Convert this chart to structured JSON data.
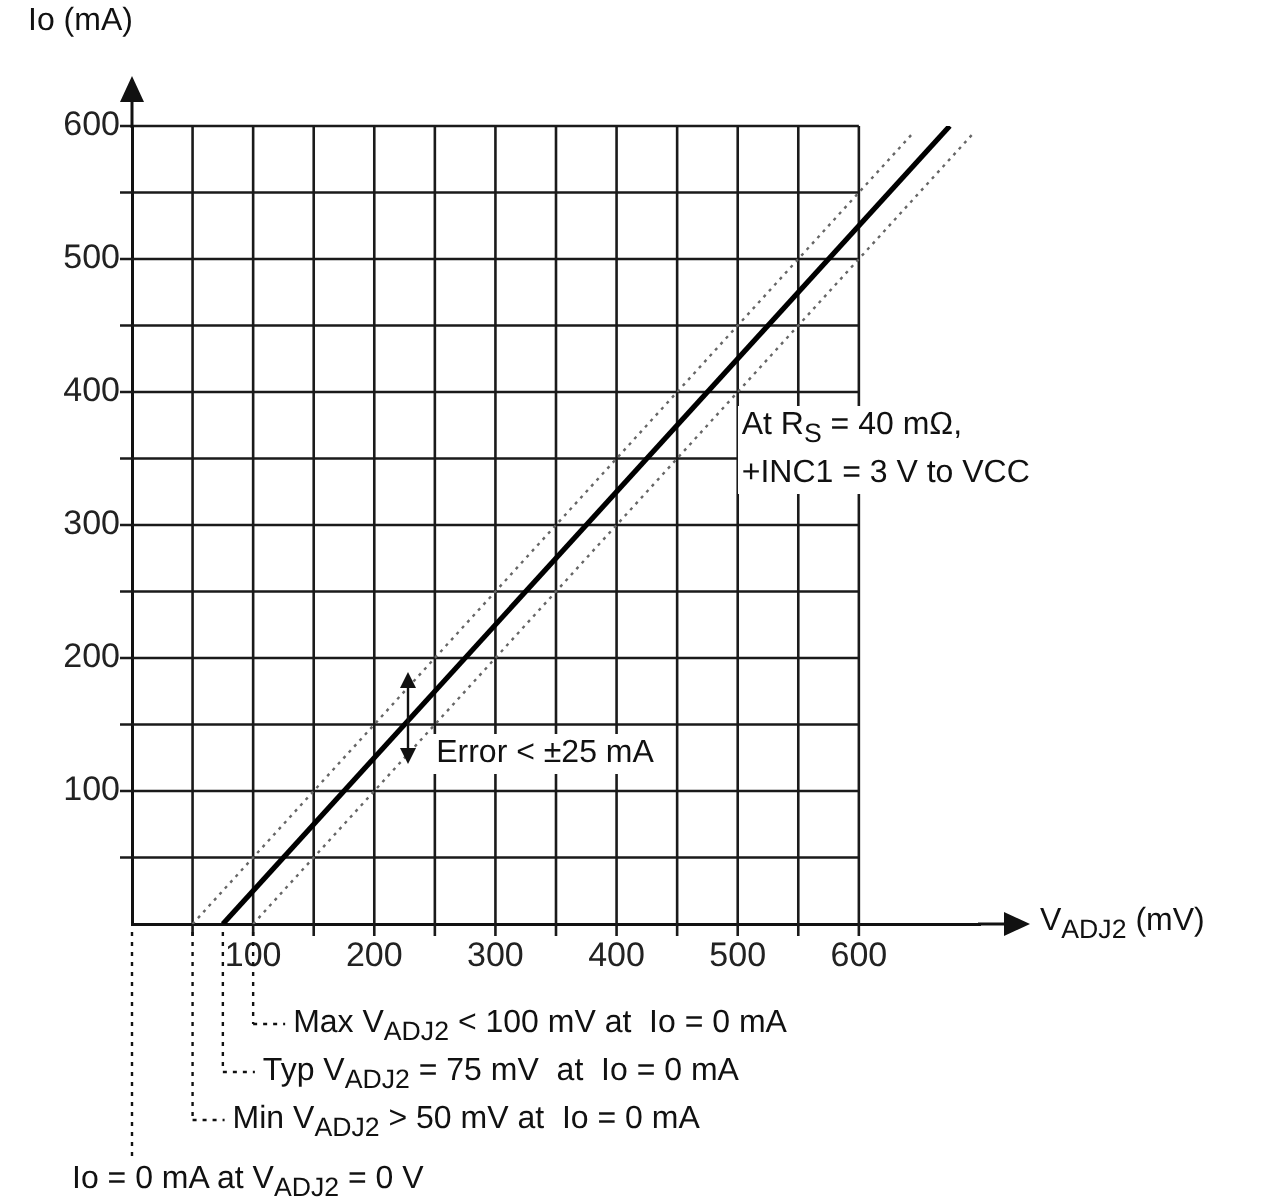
{
  "chart_data": {
    "type": "line",
    "xlabel": "V$_{ADJ2}$ (mV)",
    "ylabel": "Io (mA)",
    "xlim": [
      0,
      700
    ],
    "ylim": [
      0,
      600
    ],
    "xticks": [
      {
        "value": 50,
        "label": null
      },
      100,
      {
        "value": 150,
        "label": null
      },
      200,
      {
        "value": 250,
        "label": null
      },
      300,
      {
        "value": 350,
        "label": null
      },
      400,
      {
        "value": 450,
        "label": null
      },
      500,
      {
        "value": 550,
        "label": null
      },
      600
    ],
    "yticks": [
      {
        "value": 50,
        "label": null
      },
      100,
      {
        "value": 150,
        "label": null
      },
      200,
      {
        "value": 250,
        "label": null
      },
      300,
      {
        "value": 350,
        "label": null
      },
      400,
      {
        "value": 450,
        "label": null
      },
      500,
      {
        "value": 550,
        "label": null
      },
      600
    ],
    "grid": true,
    "series": [
      {
        "color": "#000000",
        "line_style": "solid",
        "x": [
          75,
          675
        ],
        "values": [
          0,
          600
        ]
      },
      {
        "color": "#666666",
        "line_style": "dotted",
        "x": [
          50,
          645
        ],
        "values": [
          0,
          595
        ]
      },
      {
        "color": "#666666",
        "line_style": "dotted",
        "x": [
          100,
          695
        ],
        "values": [
          0,
          595
        ]
      }
    ],
    "annotations": [
      {
        "text": "At R$_{S}$ = 40 mΩ,\n+INC1 = 3 V to VCC",
        "x": 500,
        "y": 390
      },
      {
        "text": "Error < ±25 mA",
        "x": 228,
        "y": 155
      },
      {
        "text": "Max V$_{ADJ2}$ < 100 mV at  Io = 0 mA",
        "x": 100,
        "y": 0
      },
      {
        "text": "Typ V$_{ADJ2}$ = 75 mV  at  Io = 0 mA",
        "x": 75,
        "y": 0
      },
      {
        "text": "Min V$_{ADJ2}$ > 50 mV at  Io = 0 mA",
        "x": 50,
        "y": 0
      },
      "Io = 0 mA at V$_{ADJ2}$ = 0 V"
    ]
  }
}
